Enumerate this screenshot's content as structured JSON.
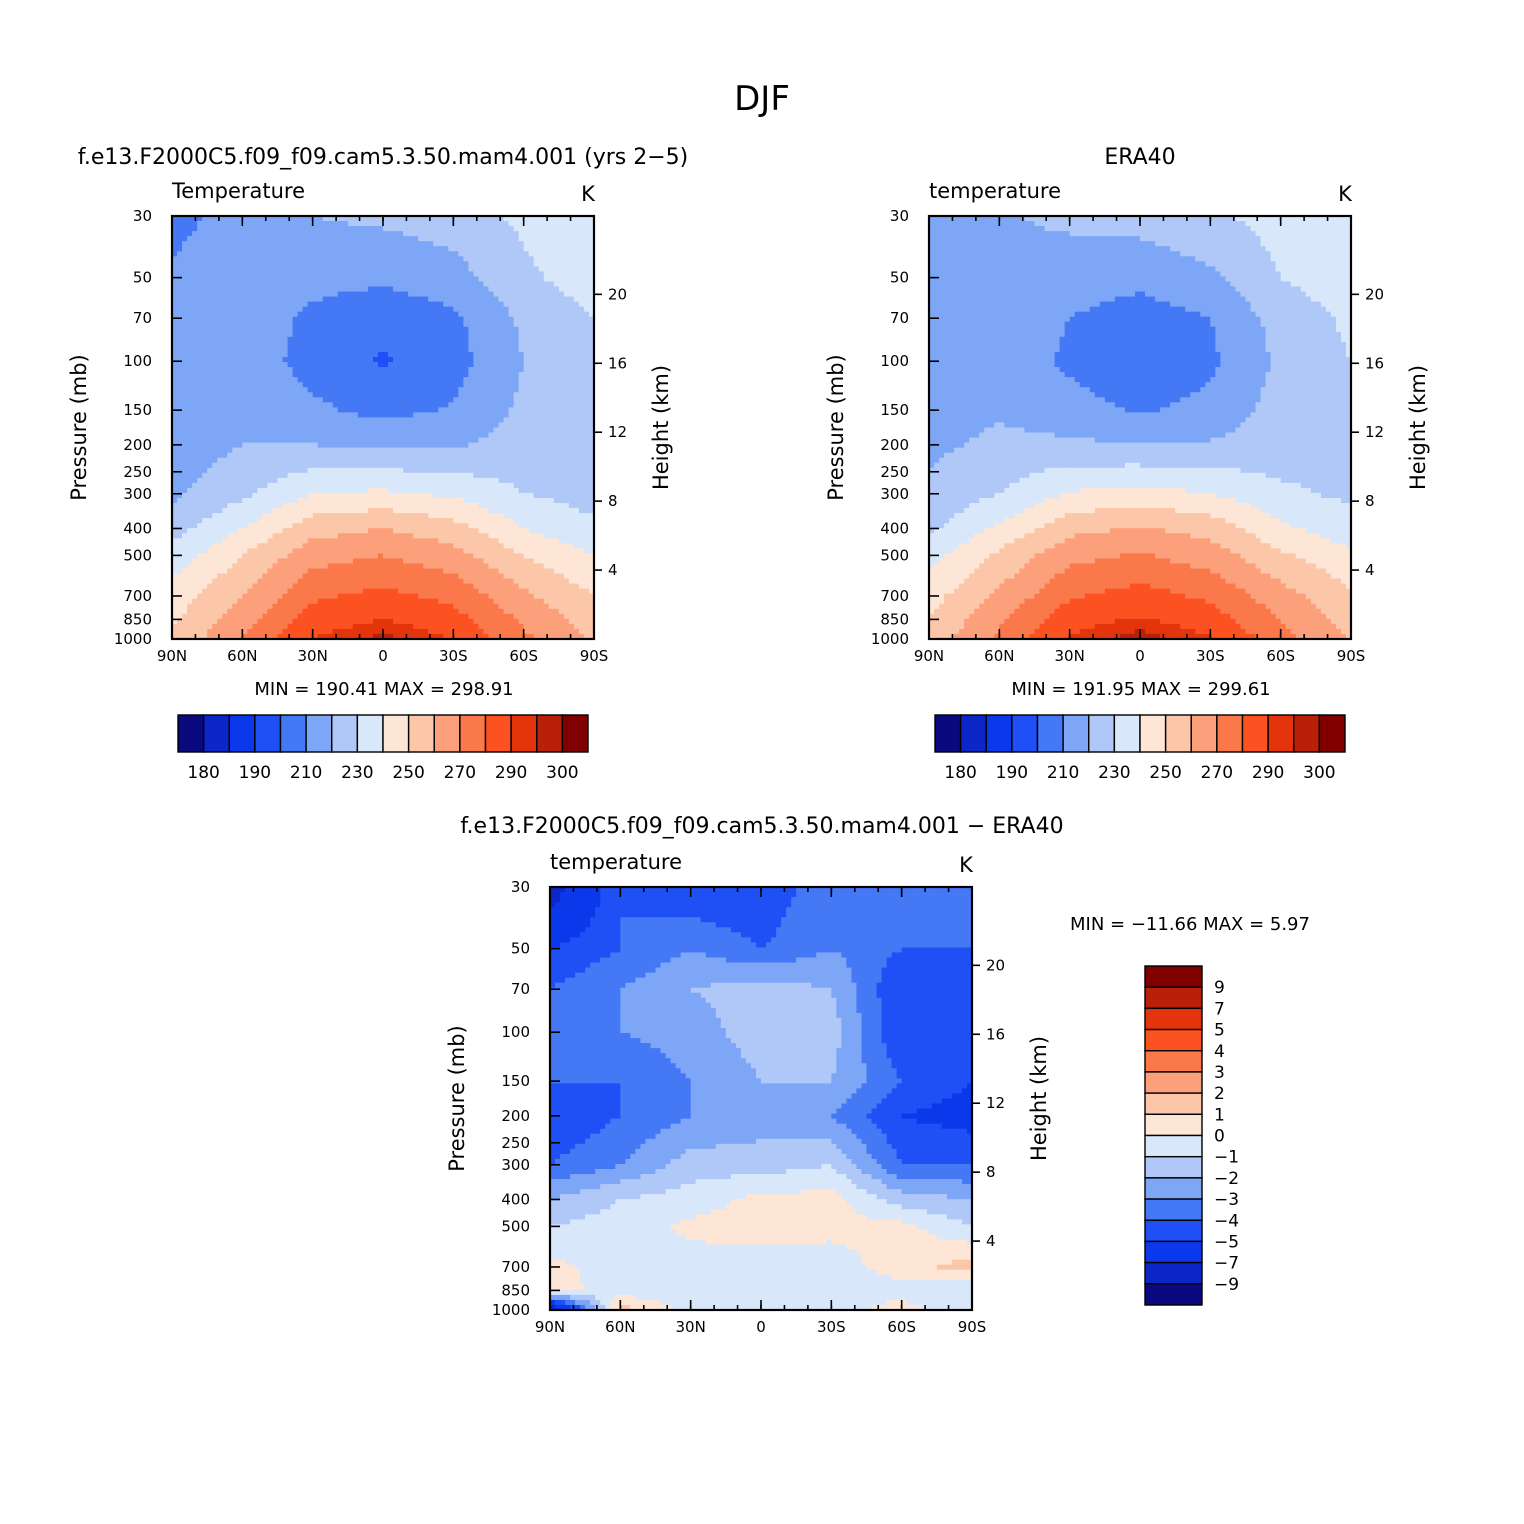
{
  "figure": {
    "title": "DJF",
    "colors": {
      "abs": [
        "#0a0a7e",
        "#0c26c8",
        "#0a38ea",
        "#1e50f5",
        "#4478f5",
        "#7ea6f6",
        "#b0c8f8",
        "#d8e8fa",
        "#fde6d6",
        "#fcc6a8",
        "#fba07a",
        "#fa784a",
        "#fc5222",
        "#e4340c",
        "#b8200a",
        "#800000"
      ],
      "diff": [
        "#0a0a7e",
        "#0c26c8",
        "#0a38ea",
        "#1e50f5",
        "#4478f5",
        "#7ea6f6",
        "#b0c8f8",
        "#d8e8fa",
        "#fde6d6",
        "#fcc6a8",
        "#fba07a",
        "#fa784a",
        "#fc5222",
        "#e4340c",
        "#b8200a",
        "#800000"
      ]
    }
  },
  "panels": [
    {
      "title": "f.e13.F2000C5.f09_f09.cam5.3.50.mam4.001 (yrs 2−5)",
      "left_label": "Temperature",
      "units": "K",
      "min_max": "MIN = 190.41 MAX = 298.91"
    },
    {
      "title": "ERA40",
      "left_label": "temperature",
      "units": "K",
      "min_max": "MIN = 191.95 MAX = 299.61"
    },
    {
      "title": "f.e13.F2000C5.f09_f09.cam5.3.50.mam4.001 − ERA40",
      "left_label": "temperature",
      "units": "K",
      "min_max": "MIN = −11.66 MAX = 5.97"
    }
  ],
  "axes": {
    "ylabel": "Pressure (mb)",
    "y2label": "Height (km)",
    "xticks": [
      "90N",
      "60N",
      "30N",
      "0",
      "30S",
      "60S",
      "90S"
    ],
    "yticks": [
      "30",
      "50",
      "70",
      "100",
      "150",
      "200",
      "250",
      "300",
      "400",
      "500",
      "700",
      "850",
      "1000"
    ],
    "y2ticks": [
      "20",
      "16",
      "12",
      "8",
      "4"
    ]
  },
  "colorbars": {
    "abs_labels": [
      "180",
      "190",
      "210",
      "230",
      "250",
      "270",
      "290",
      "300"
    ],
    "diff_labels": [
      "9",
      "7",
      "5",
      "4",
      "3",
      "2",
      "1",
      "0",
      "−1",
      "−2",
      "−3",
      "−4",
      "−5",
      "−7",
      "−9"
    ]
  },
  "chart_data": [
    {
      "type": "heatmap",
      "title": "f.e13.F2000C5.f09_f09.cam5.3.50.mam4.001 (yrs 2−5)",
      "ylabel": "Pressure (mb)",
      "y2label": "Height (km)",
      "xlabel": "",
      "x": [
        90,
        60,
        30,
        0,
        -30,
        -60,
        -90
      ],
      "y": [
        30,
        50,
        70,
        100,
        150,
        200,
        300,
        400,
        500,
        700,
        850,
        1000
      ],
      "ylog": true,
      "levels": [
        180,
        185,
        190,
        200,
        210,
        220,
        230,
        240,
        250,
        260,
        270,
        280,
        290,
        295,
        300
      ],
      "z": [
        [
          206,
          215,
          220,
          222,
          225,
          232,
          238
        ],
        [
          212,
          218,
          213,
          212,
          216,
          228,
          235
        ],
        [
          213,
          216,
          208,
          203,
          208,
          222,
          230
        ],
        [
          212,
          216,
          206,
          199,
          206,
          220,
          228
        ],
        [
          213,
          218,
          212,
          207,
          211,
          222,
          226
        ],
        [
          214,
          220,
          220,
          218,
          219,
          224,
          225
        ],
        [
          218,
          228,
          240,
          242,
          238,
          230,
          226
        ],
        [
          226,
          240,
          256,
          260,
          254,
          240,
          232
        ],
        [
          234,
          250,
          266,
          270,
          264,
          250,
          240
        ],
        [
          245,
          260,
          278,
          283,
          277,
          262,
          250
        ],
        [
          248,
          266,
          285,
          290,
          284,
          268,
          255
        ],
        [
          252,
          270,
          290,
          297,
          290,
          272,
          258
        ]
      ]
    },
    {
      "type": "heatmap",
      "title": "ERA40",
      "ylabel": "Pressure (mb)",
      "y2label": "Height (km)",
      "xlabel": "",
      "x": [
        90,
        60,
        30,
        0,
        -30,
        -60,
        -90
      ],
      "y": [
        30,
        50,
        70,
        100,
        150,
        200,
        300,
        400,
        500,
        700,
        850,
        1000
      ],
      "ylog": true,
      "levels": [
        180,
        185,
        190,
        200,
        210,
        220,
        230,
        240,
        250,
        260,
        270,
        280,
        290,
        295,
        300
      ],
      "z": [
        [
          214,
          219,
          222,
          224,
          228,
          234,
          240
        ],
        [
          216,
          219,
          215,
          213,
          218,
          230,
          236
        ],
        [
          216,
          217,
          210,
          205,
          210,
          224,
          232
        ],
        [
          215,
          217,
          208,
          201,
          208,
          222,
          230
        ],
        [
          216,
          219,
          214,
          209,
          213,
          224,
          228
        ],
        [
          218,
          222,
          222,
          220,
          221,
          225,
          227
        ],
        [
          222,
          230,
          241,
          244,
          240,
          232,
          228
        ],
        [
          228,
          242,
          257,
          261,
          256,
          242,
          234
        ],
        [
          236,
          252,
          267,
          271,
          265,
          252,
          242
        ],
        [
          246,
          262,
          279,
          284,
          278,
          264,
          252
        ],
        [
          250,
          268,
          286,
          291,
          285,
          270,
          256
        ],
        [
          254,
          272,
          291,
          298,
          291,
          274,
          260
        ]
      ]
    },
    {
      "type": "heatmap",
      "title": "f.e13.F2000C5.f09_f09.cam5.3.50.mam4.001 − ERA40",
      "ylabel": "Pressure (mb)",
      "y2label": "Height (km)",
      "xlabel": "",
      "x": [
        90,
        60,
        30,
        0,
        -30,
        -60,
        -90
      ],
      "y": [
        30,
        50,
        70,
        100,
        150,
        200,
        300,
        400,
        500,
        700,
        850,
        1000
      ],
      "ylog": true,
      "levels": [
        -9,
        -7,
        -5,
        -4,
        -3,
        -2,
        -1,
        0,
        1,
        2,
        3,
        4,
        5,
        7,
        9
      ],
      "z": [
        [
          -8,
          -4,
          -5,
          -5,
          -3,
          -3,
          -3
        ],
        [
          -5,
          -4,
          -3,
          -4,
          -3,
          -4,
          -4
        ],
        [
          -4,
          -3,
          -2,
          -1.5,
          -2,
          -5,
          -5
        ],
        [
          -4,
          -3,
          -2.5,
          -1.5,
          -1.5,
          -5,
          -5
        ],
        [
          -4,
          -4,
          -3,
          -2,
          -2,
          -4,
          -5
        ],
        [
          -5,
          -4,
          -3,
          -2.5,
          -3,
          -5,
          -5.5
        ],
        [
          -4,
          -3,
          -1.5,
          -1.5,
          -1,
          -4,
          -4
        ],
        [
          -2,
          -1,
          -0.5,
          0.3,
          0.4,
          -1.5,
          -2
        ],
        [
          -1,
          -0.5,
          0.2,
          0.5,
          0.3,
          0.3,
          -1
        ],
        [
          0.3,
          -0.5,
          -0.4,
          -0.5,
          -0.5,
          0.5,
          1.5
        ],
        [
          0.5,
          -0.5,
          -0.8,
          -0.6,
          -0.5,
          -0.5,
          -1
        ],
        [
          -9,
          1.5,
          -0.5,
          -0.5,
          -0.5,
          0.5,
          -1
        ]
      ]
    }
  ]
}
